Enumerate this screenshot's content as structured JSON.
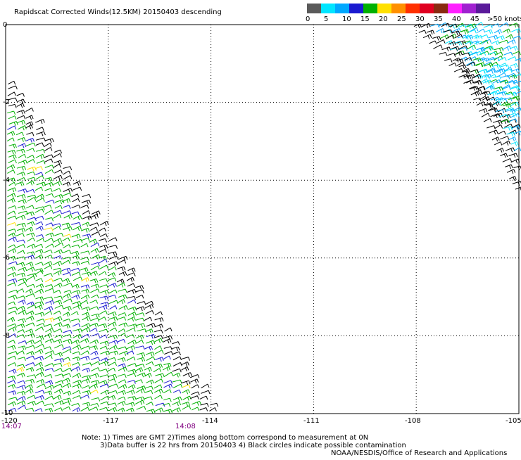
{
  "title": "Rapidscat Corrected Winds(12.5KM) 20150403 descending",
  "legend": {
    "unit_label": ">50 knots",
    "labels": [
      "0",
      "5",
      "10",
      "15",
      "20",
      "25",
      "30",
      "35",
      "40",
      "45"
    ],
    "colors": [
      "#5a5a5a",
      "#00e5ff",
      "#00a8ff",
      "#1a1ad0",
      "#00b000",
      "#ffe000",
      "#ff9000",
      "#ff3000",
      "#e00020",
      "#8a2a10",
      "#ff20ff",
      "#a020d0",
      "#5a1a9a"
    ]
  },
  "map": {
    "lon_labels": [
      "-120",
      "-117",
      "-114",
      "-111",
      "-108",
      "-105"
    ],
    "lat_labels": [
      "0",
      "-2",
      "-4",
      "-6",
      "-8",
      "-10"
    ],
    "time_labels": [
      "14:07",
      "14:08"
    ]
  },
  "swaths": [
    {
      "name": "west-swath",
      "lon_range": [
        -120,
        -114
      ],
      "lat_range": [
        -10,
        -1.5
      ],
      "dominant_colors": [
        "#00b000",
        "#1a1ad0",
        "#000000"
      ]
    },
    {
      "name": "east-swath",
      "lon_range": [
        -108,
        -105
      ],
      "lat_range": [
        -4.5,
        0
      ],
      "dominant_colors": [
        "#00a8ff",
        "#00e5ff",
        "#000000",
        "#00b000"
      ]
    }
  ],
  "notes": {
    "line1": "Note: 1) Times are GMT 2)Times along bottom correspond to measurement at 0N",
    "line2": "3)Data buffer is 22 hrs from 20150403 4) Black circles indicate possible contamination",
    "credit": "NOAA/NESDIS/Office of Research and Applications"
  }
}
